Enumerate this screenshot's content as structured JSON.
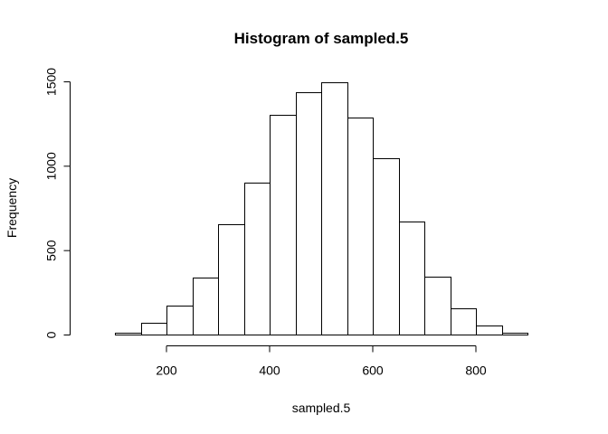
{
  "chart_data": {
    "type": "bar",
    "title": "Histogram of sampled.5",
    "xlabel": "sampled.5",
    "ylabel": "Frequency",
    "bins": [
      {
        "x0": 50,
        "x1": 100,
        "count": 2
      },
      {
        "x0": 100,
        "x1": 150,
        "count": 12
      },
      {
        "x0": 150,
        "x1": 200,
        "count": 70
      },
      {
        "x0": 200,
        "x1": 250,
        "count": 175
      },
      {
        "x0": 250,
        "x1": 300,
        "count": 340
      },
      {
        "x0": 300,
        "x1": 350,
        "count": 655
      },
      {
        "x0": 350,
        "x1": 400,
        "count": 905
      },
      {
        "x0": 400,
        "x1": 450,
        "count": 1305
      },
      {
        "x0": 450,
        "x1": 500,
        "count": 1440
      },
      {
        "x0": 500,
        "x1": 550,
        "count": 1500
      },
      {
        "x0": 550,
        "x1": 600,
        "count": 1290
      },
      {
        "x0": 600,
        "x1": 650,
        "count": 1050
      },
      {
        "x0": 650,
        "x1": 700,
        "count": 670
      },
      {
        "x0": 700,
        "x1": 750,
        "count": 345
      },
      {
        "x0": 750,
        "x1": 800,
        "count": 160
      },
      {
        "x0": 800,
        "x1": 850,
        "count": 55
      },
      {
        "x0": 850,
        "x1": 900,
        "count": 15
      },
      {
        "x0": 900,
        "x1": 950,
        "count": 2
      }
    ],
    "x_ticks": [
      200,
      400,
      600,
      800
    ],
    "y_ticks": [
      0,
      500,
      1000,
      1500
    ],
    "xlim": [
      50,
      950
    ],
    "ylim": [
      0,
      1500
    ],
    "grid": false,
    "bar_fill": "#ffffff",
    "bar_stroke": "#000000"
  }
}
